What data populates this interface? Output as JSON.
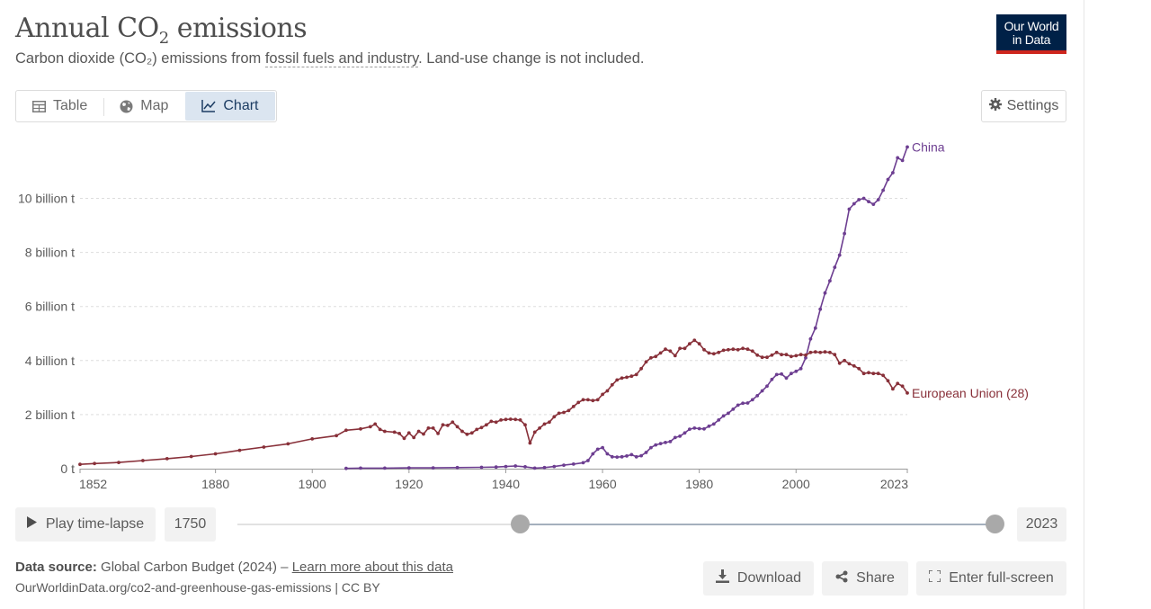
{
  "header": {
    "title_main": "Annual CO",
    "title_sub": "2",
    "title_rest": " emissions",
    "subtitle_pre": "Carbon dioxide (CO₂) emissions from ",
    "subtitle_link": "fossil fuels and industry",
    "subtitle_post": ". Land-use change is not included.",
    "logo_line1": "Our World",
    "logo_line2": "in Data"
  },
  "tabs": [
    {
      "label": "Table",
      "icon": "table-icon"
    },
    {
      "label": "Map",
      "icon": "globe-icon"
    },
    {
      "label": "Chart",
      "icon": "line-chart-icon",
      "active": true
    }
  ],
  "settings_label": "Settings",
  "timeline": {
    "play_label": "Play time-lapse",
    "start_year": "1750",
    "end_year": "2023",
    "range_min": 1750,
    "range_max": 2023,
    "selected_start": 1852,
    "selected_end": 2023
  },
  "footer": {
    "source_label": "Data source:",
    "source_text": " Global Carbon Budget (2024) – ",
    "source_link": "Learn more about this data",
    "url": "OurWorldinData.org/co2-and-greenhouse-gas-emissions | CC BY",
    "download_label": "Download",
    "share_label": "Share",
    "fullscreen_label": "Enter full-screen"
  },
  "colors": {
    "china": "#6d3e91",
    "eu": "#883039",
    "grid": "#dddddd",
    "axis_text": "#5b5b5b"
  },
  "chart_data": {
    "type": "line",
    "title": "Annual CO₂ emissions",
    "xlim": [
      1852,
      2023
    ],
    "ylim": [
      0,
      12000000000
    ],
    "x_ticks": [
      1852,
      1880,
      1900,
      1920,
      1940,
      1960,
      1980,
      2000,
      2023
    ],
    "y_ticks": [
      0,
      2000000000,
      4000000000,
      6000000000,
      8000000000,
      10000000000
    ],
    "y_tick_labels": [
      "0 t",
      "2 billion t",
      "4 billion t",
      "6 billion t",
      "8 billion t",
      "10 billion t"
    ],
    "grid": true,
    "series": [
      {
        "name": "China",
        "color": "#6d3e91",
        "points": [
          [
            1907,
            0.01
          ],
          [
            1910,
            0.02
          ],
          [
            1915,
            0.02
          ],
          [
            1920,
            0.03
          ],
          [
            1925,
            0.03
          ],
          [
            1930,
            0.04
          ],
          [
            1935,
            0.05
          ],
          [
            1938,
            0.06
          ],
          [
            1940,
            0.08
          ],
          [
            1942,
            0.1
          ],
          [
            1944,
            0.07
          ],
          [
            1946,
            0.02
          ],
          [
            1948,
            0.04
          ],
          [
            1950,
            0.08
          ],
          [
            1952,
            0.13
          ],
          [
            1954,
            0.17
          ],
          [
            1956,
            0.22
          ],
          [
            1957,
            0.3
          ],
          [
            1958,
            0.55
          ],
          [
            1959,
            0.72
          ],
          [
            1960,
            0.78
          ],
          [
            1961,
            0.55
          ],
          [
            1962,
            0.44
          ],
          [
            1963,
            0.43
          ],
          [
            1964,
            0.44
          ],
          [
            1965,
            0.47
          ],
          [
            1966,
            0.52
          ],
          [
            1967,
            0.44
          ],
          [
            1968,
            0.48
          ],
          [
            1969,
            0.6
          ],
          [
            1970,
            0.78
          ],
          [
            1971,
            0.88
          ],
          [
            1972,
            0.93
          ],
          [
            1973,
            0.97
          ],
          [
            1974,
            1.0
          ],
          [
            1975,
            1.15
          ],
          [
            1976,
            1.2
          ],
          [
            1977,
            1.32
          ],
          [
            1978,
            1.46
          ],
          [
            1979,
            1.5
          ],
          [
            1980,
            1.48
          ],
          [
            1981,
            1.47
          ],
          [
            1982,
            1.57
          ],
          [
            1983,
            1.65
          ],
          [
            1984,
            1.8
          ],
          [
            1985,
            1.95
          ],
          [
            1986,
            2.05
          ],
          [
            1987,
            2.2
          ],
          [
            1988,
            2.35
          ],
          [
            1989,
            2.42
          ],
          [
            1990,
            2.43
          ],
          [
            1991,
            2.55
          ],
          [
            1992,
            2.7
          ],
          [
            1993,
            2.88
          ],
          [
            1994,
            3.05
          ],
          [
            1995,
            3.3
          ],
          [
            1996,
            3.48
          ],
          [
            1997,
            3.5
          ],
          [
            1998,
            3.35
          ],
          [
            1999,
            3.52
          ],
          [
            2000,
            3.6
          ],
          [
            2001,
            3.7
          ],
          [
            2002,
            4.1
          ],
          [
            2003,
            4.8
          ],
          [
            2004,
            5.2
          ],
          [
            2005,
            5.9
          ],
          [
            2006,
            6.5
          ],
          [
            2007,
            6.95
          ],
          [
            2008,
            7.45
          ],
          [
            2009,
            7.9
          ],
          [
            2010,
            8.7
          ],
          [
            2011,
            9.6
          ],
          [
            2012,
            9.8
          ],
          [
            2013,
            9.95
          ],
          [
            2014,
            10.0
          ],
          [
            2015,
            9.88
          ],
          [
            2016,
            9.78
          ],
          [
            2017,
            9.95
          ],
          [
            2018,
            10.3
          ],
          [
            2019,
            10.7
          ],
          [
            2020,
            10.95
          ],
          [
            2021,
            11.5
          ],
          [
            2022,
            11.4
          ],
          [
            2023,
            11.9
          ]
        ]
      },
      {
        "name": "European Union (28)",
        "color": "#883039",
        "points": [
          [
            1852,
            0.16
          ],
          [
            1855,
            0.19
          ],
          [
            1860,
            0.23
          ],
          [
            1865,
            0.3
          ],
          [
            1870,
            0.37
          ],
          [
            1875,
            0.45
          ],
          [
            1880,
            0.55
          ],
          [
            1885,
            0.68
          ],
          [
            1890,
            0.8
          ],
          [
            1895,
            0.92
          ],
          [
            1900,
            1.1
          ],
          [
            1905,
            1.22
          ],
          [
            1907,
            1.42
          ],
          [
            1910,
            1.47
          ],
          [
            1912,
            1.55
          ],
          [
            1913,
            1.65
          ],
          [
            1914,
            1.45
          ],
          [
            1915,
            1.38
          ],
          [
            1917,
            1.35
          ],
          [
            1918,
            1.3
          ],
          [
            1919,
            1.12
          ],
          [
            1920,
            1.32
          ],
          [
            1921,
            1.15
          ],
          [
            1922,
            1.38
          ],
          [
            1923,
            1.28
          ],
          [
            1924,
            1.5
          ],
          [
            1925,
            1.5
          ],
          [
            1926,
            1.3
          ],
          [
            1927,
            1.62
          ],
          [
            1928,
            1.6
          ],
          [
            1929,
            1.72
          ],
          [
            1930,
            1.55
          ],
          [
            1931,
            1.38
          ],
          [
            1932,
            1.27
          ],
          [
            1933,
            1.32
          ],
          [
            1934,
            1.45
          ],
          [
            1935,
            1.52
          ],
          [
            1936,
            1.62
          ],
          [
            1937,
            1.75
          ],
          [
            1938,
            1.72
          ],
          [
            1939,
            1.8
          ],
          [
            1940,
            1.82
          ],
          [
            1941,
            1.83
          ],
          [
            1942,
            1.82
          ],
          [
            1943,
            1.8
          ],
          [
            1944,
            1.62
          ],
          [
            1945,
            0.95
          ],
          [
            1946,
            1.35
          ],
          [
            1947,
            1.5
          ],
          [
            1948,
            1.65
          ],
          [
            1949,
            1.72
          ],
          [
            1950,
            1.92
          ],
          [
            1951,
            2.05
          ],
          [
            1952,
            2.08
          ],
          [
            1953,
            2.15
          ],
          [
            1954,
            2.3
          ],
          [
            1955,
            2.45
          ],
          [
            1956,
            2.55
          ],
          [
            1957,
            2.55
          ],
          [
            1958,
            2.52
          ],
          [
            1959,
            2.55
          ],
          [
            1960,
            2.75
          ],
          [
            1961,
            2.88
          ],
          [
            1962,
            3.1
          ],
          [
            1963,
            3.28
          ],
          [
            1964,
            3.35
          ],
          [
            1965,
            3.38
          ],
          [
            1966,
            3.42
          ],
          [
            1967,
            3.48
          ],
          [
            1968,
            3.7
          ],
          [
            1969,
            3.95
          ],
          [
            1970,
            4.1
          ],
          [
            1971,
            4.15
          ],
          [
            1972,
            4.28
          ],
          [
            1973,
            4.42
          ],
          [
            1974,
            4.35
          ],
          [
            1975,
            4.18
          ],
          [
            1976,
            4.45
          ],
          [
            1977,
            4.45
          ],
          [
            1978,
            4.62
          ],
          [
            1979,
            4.75
          ],
          [
            1980,
            4.62
          ],
          [
            1981,
            4.4
          ],
          [
            1982,
            4.28
          ],
          [
            1983,
            4.25
          ],
          [
            1984,
            4.3
          ],
          [
            1985,
            4.38
          ],
          [
            1986,
            4.4
          ],
          [
            1987,
            4.42
          ],
          [
            1988,
            4.4
          ],
          [
            1989,
            4.45
          ],
          [
            1990,
            4.42
          ],
          [
            1991,
            4.35
          ],
          [
            1992,
            4.2
          ],
          [
            1993,
            4.12
          ],
          [
            1994,
            4.12
          ],
          [
            1995,
            4.2
          ],
          [
            1996,
            4.3
          ],
          [
            1997,
            4.22
          ],
          [
            1998,
            4.22
          ],
          [
            1999,
            4.15
          ],
          [
            2000,
            4.18
          ],
          [
            2001,
            4.22
          ],
          [
            2002,
            4.2
          ],
          [
            2003,
            4.3
          ],
          [
            2004,
            4.32
          ],
          [
            2005,
            4.3
          ],
          [
            2006,
            4.32
          ],
          [
            2007,
            4.3
          ],
          [
            2008,
            4.22
          ],
          [
            2009,
            3.9
          ],
          [
            2010,
            4.0
          ],
          [
            2011,
            3.88
          ],
          [
            2012,
            3.8
          ],
          [
            2013,
            3.7
          ],
          [
            2014,
            3.52
          ],
          [
            2015,
            3.55
          ],
          [
            2016,
            3.52
          ],
          [
            2017,
            3.52
          ],
          [
            2018,
            3.45
          ],
          [
            2019,
            3.25
          ],
          [
            2020,
            2.95
          ],
          [
            2021,
            3.15
          ],
          [
            2022,
            3.05
          ],
          [
            2023,
            2.8
          ]
        ]
      }
    ],
    "units_note": "series point y-values in billion t"
  }
}
